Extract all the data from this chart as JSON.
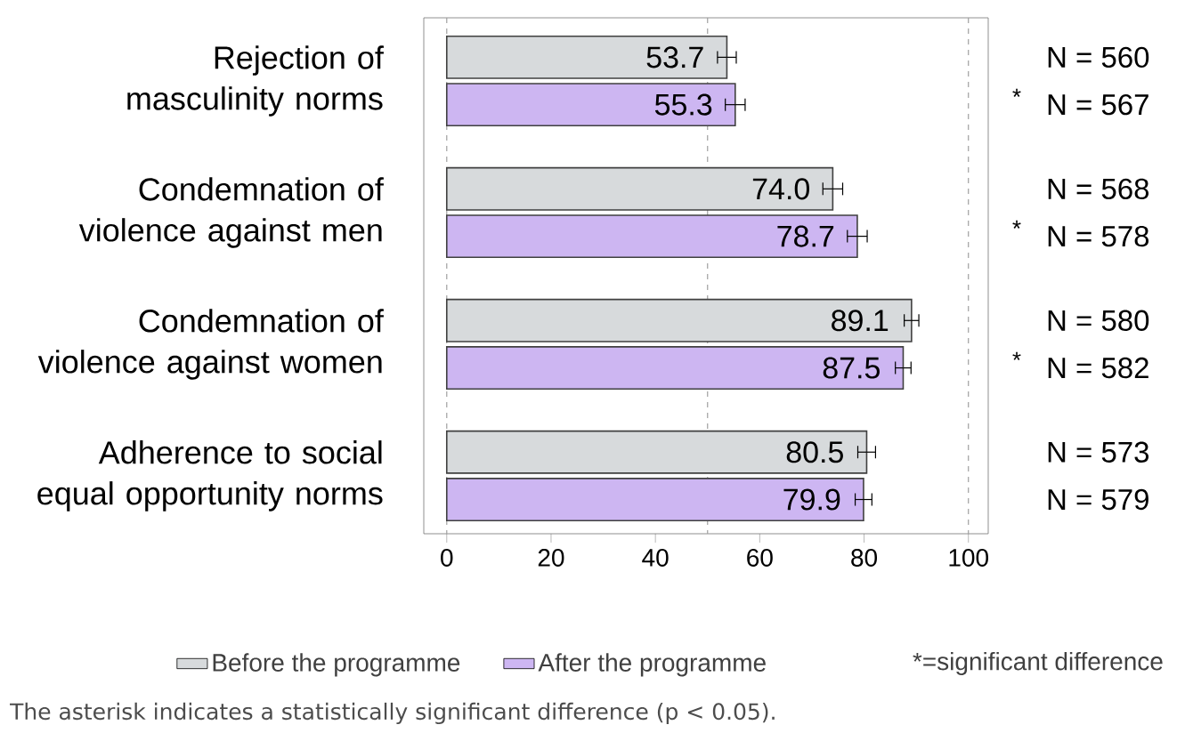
{
  "chart_data": {
    "type": "bar",
    "orientation": "horizontal",
    "categories": [
      "Rejection of masculinity norms",
      "Condemnation of violence against men",
      "Condemnation of violence against women",
      "Adherence to social equal opportunity norms"
    ],
    "series": [
      {
        "name": "Before the programme",
        "color": "#d7dadc",
        "values": [
          53.7,
          74.0,
          89.1,
          80.5
        ],
        "value_labels": [
          "53.7",
          "74.0",
          "89.1",
          "80.5"
        ],
        "errors": [
          1.8,
          1.9,
          1.4,
          1.7
        ]
      },
      {
        "name": "After the programme",
        "color": "#cdb6f2",
        "values": [
          55.3,
          78.7,
          87.5,
          79.9
        ],
        "value_labels": [
          "55.3",
          "78.7",
          "87.5",
          "79.9"
        ],
        "errors": [
          1.9,
          1.9,
          1.5,
          1.6
        ]
      }
    ],
    "xlim": [
      -4.4,
      103.8
    ],
    "xticks": [
      0,
      20,
      40,
      60,
      80,
      100
    ],
    "ref_lines": [
      {
        "axis": "x",
        "value": 0,
        "color": "#a0a0a0",
        "line_style": "dashed"
      },
      {
        "axis": "x",
        "value": 50,
        "color": "#a0a0a0",
        "line_style": "dashed"
      },
      {
        "axis": "x",
        "value": 100,
        "color": "#a0a0a0",
        "line_style": "dashed"
      }
    ],
    "legend": "bottom",
    "annotations": [
      "N = 560",
      "N = 567",
      "N = 568",
      "N = 578",
      "N = 580",
      "N = 582",
      "N = 573",
      "N = 579",
      "*",
      "*",
      "*",
      "*=significant difference",
      "The asterisk indicates a statistically significant difference (p < 0.05)."
    ]
  }
}
